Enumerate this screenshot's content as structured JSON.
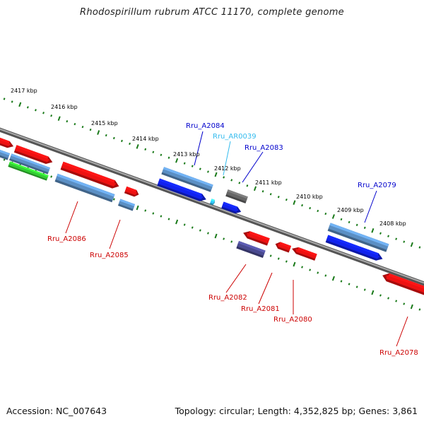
{
  "title": "Rhodospirillum rubrum ATCC 11170, complete genome",
  "footer": {
    "accession": "Accession: NC_007643",
    "topology": "Topology: circular; Length: 4,352,825 bp; Genes: 3,861"
  },
  "colors": {
    "backbone": "#8a8a8a",
    "tick": "#1a7a1a",
    "forward_label": "#0000cc",
    "reverse_label": "#cc0000",
    "rna_label": "#33bbee",
    "cds_red": "#ee1111",
    "cds_steelblue": "#5b8fc4",
    "cds_blue": "#1122ee",
    "cds_green": "#33cc33",
    "cds_gray": "#666666",
    "cds_purple": "#4a4a90",
    "rna_cyan": "#33ccff"
  },
  "kbp_ticks": [
    "2417 kbp",
    "2416 kbp",
    "2415 kbp",
    "2414 kbp",
    "2413 kbp",
    "2412 kbp",
    "2411 kbp",
    "2410 kbp",
    "2409 kbp",
    "2408 kbp"
  ],
  "gene_labels": [
    {
      "name": "Rru_A2084",
      "strand": "forward"
    },
    {
      "name": "Rru_AR0039",
      "strand": "rna"
    },
    {
      "name": "Rru_A2083",
      "strand": "forward"
    },
    {
      "name": "Rru_A2079",
      "strand": "forward"
    },
    {
      "name": "Rru_A2086",
      "strand": "reverse"
    },
    {
      "name": "Rru_A2085",
      "strand": "reverse"
    },
    {
      "name": "Rru_A2082",
      "strand": "reverse"
    },
    {
      "name": "Rru_A2081",
      "strand": "reverse"
    },
    {
      "name": "Rru_A2080",
      "strand": "reverse"
    },
    {
      "name": "Rru_A2078",
      "strand": "reverse"
    }
  ]
}
